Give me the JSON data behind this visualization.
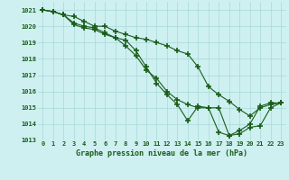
{
  "title": "Graphe pression niveau de la mer (hPa)",
  "bg_color": "#cef0f0",
  "grid_color": "#a8d8d8",
  "line_color": "#1a5c1a",
  "marker": "+",
  "marker_size": 4,
  "marker_lw": 1.2,
  "linewidth": 0.8,
  "xlim": [
    -0.5,
    23.5
  ],
  "ylim": [
    1013,
    1021.5
  ],
  "xticks": [
    0,
    1,
    2,
    3,
    4,
    5,
    6,
    7,
    8,
    9,
    10,
    11,
    12,
    13,
    14,
    15,
    16,
    17,
    18,
    19,
    20,
    21,
    22,
    23
  ],
  "yticks": [
    1013,
    1014,
    1015,
    1016,
    1017,
    1018,
    1019,
    1020,
    1021
  ],
  "series": [
    [
      1021.0,
      1020.9,
      1020.7,
      1020.6,
      1020.3,
      1020.0,
      1020.0,
      1019.7,
      1019.5,
      1019.3,
      1019.2,
      1019.0,
      1018.8,
      1018.5,
      1018.3,
      1017.5,
      1016.3,
      1015.8,
      1015.4,
      1014.9,
      1014.5,
      1015.0,
      1015.2,
      1015.3
    ],
    [
      1021.0,
      1020.9,
      1020.7,
      1020.2,
      1020.0,
      1019.9,
      1019.6,
      1019.3,
      1019.15,
      1018.5,
      1017.5,
      1016.5,
      1015.8,
      1015.2,
      1014.2,
      1015.1,
      1015.0,
      1015.0,
      1013.3,
      1013.4,
      1013.8,
      1013.9,
      1015.0,
      1015.3
    ],
    [
      1021.0,
      1020.9,
      1020.7,
      1020.1,
      1019.9,
      1019.8,
      1019.5,
      1019.3,
      1018.8,
      1018.2,
      1017.3,
      1016.8,
      1016.0,
      1015.5,
      1015.2,
      1015.0,
      1015.0,
      1013.5,
      1013.3,
      1013.6,
      1014.0,
      1015.1,
      1015.3,
      1015.3
    ]
  ]
}
